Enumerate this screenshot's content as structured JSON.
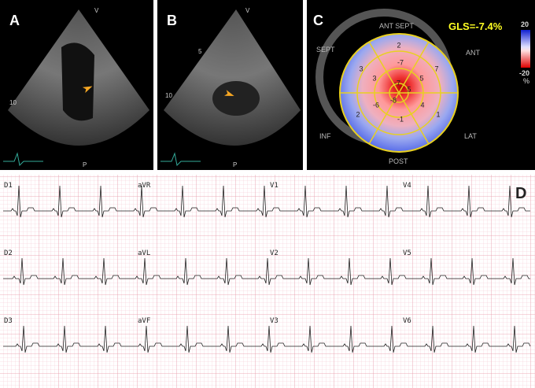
{
  "panels": {
    "a": {
      "label": "A",
      "marks": [
        "V",
        "10",
        "P"
      ]
    },
    "b": {
      "label": "B",
      "marks": [
        "V",
        "5",
        "10",
        "P"
      ]
    },
    "c": {
      "label": "C",
      "gls": "GLS=-7.4%",
      "walls": [
        "ANT SEPT",
        "ANT",
        "SEPT",
        "INF",
        "LAT",
        "POST"
      ],
      "segments": [
        2,
        7,
        3,
        2,
        1,
        -7,
        5,
        3,
        -6,
        4,
        -1,
        -7,
        5,
        -8
      ],
      "scale": {
        "max": "20",
        "min": "-20",
        "unit": "%"
      }
    },
    "d": {
      "label": "D",
      "leads": [
        "D1",
        "aVR",
        "V1",
        "V4",
        "D2",
        "aVL",
        "V2",
        "V5",
        "D3",
        "aVF",
        "V3",
        "V6"
      ]
    }
  }
}
